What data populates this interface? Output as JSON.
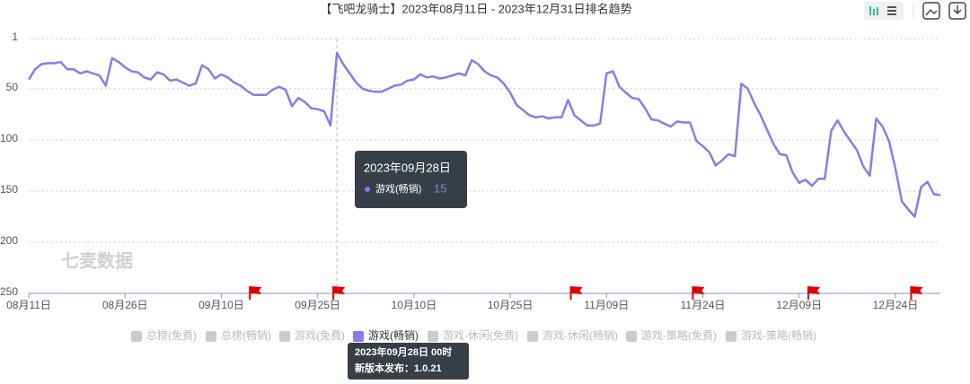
{
  "chart_data": {
    "type": "line",
    "title": "【飞吧龙骑士】2023年08月11日 - 2023年12月31日排名趋势",
    "watermark": "七麦数据",
    "x": [
      "08-11",
      "08-12",
      "08-13",
      "08-14",
      "08-15",
      "08-16",
      "08-17",
      "08-18",
      "08-19",
      "08-20",
      "08-21",
      "08-22",
      "08-23",
      "08-24",
      "08-25",
      "08-26",
      "08-27",
      "08-28",
      "08-29",
      "08-30",
      "08-31",
      "09-01",
      "09-02",
      "09-03",
      "09-04",
      "09-05",
      "09-06",
      "09-07",
      "09-08",
      "09-09",
      "09-10",
      "09-11",
      "09-12",
      "09-13",
      "09-14",
      "09-15",
      "09-16",
      "09-17",
      "09-18",
      "09-19",
      "09-20",
      "09-21",
      "09-22",
      "09-23",
      "09-24",
      "09-25",
      "09-26",
      "09-27",
      "09-28",
      "09-29",
      "09-30",
      "10-01",
      "10-02",
      "10-03",
      "10-04",
      "10-05",
      "10-06",
      "10-07",
      "10-08",
      "10-09",
      "10-10",
      "10-11",
      "10-12",
      "10-13",
      "10-14",
      "10-15",
      "10-16",
      "10-17",
      "10-18",
      "10-19",
      "10-20",
      "10-21",
      "10-22",
      "10-23",
      "10-24",
      "10-25",
      "10-26",
      "10-27",
      "10-28",
      "10-29",
      "10-30",
      "10-31",
      "11-01",
      "11-02",
      "11-03",
      "11-04",
      "11-05",
      "11-06",
      "11-07",
      "11-08",
      "11-09",
      "11-10",
      "11-11",
      "11-12",
      "11-13",
      "11-14",
      "11-15",
      "11-16",
      "11-17",
      "11-18",
      "11-19",
      "11-20",
      "11-21",
      "11-22",
      "11-23",
      "11-24",
      "11-25",
      "11-26",
      "11-27",
      "11-28",
      "11-29",
      "11-30",
      "12-01",
      "12-02",
      "12-03",
      "12-04",
      "12-05",
      "12-06",
      "12-07",
      "12-08",
      "12-09",
      "12-10",
      "12-11",
      "12-12",
      "12-13",
      "12-14",
      "12-15",
      "12-16",
      "12-17",
      "12-18",
      "12-19",
      "12-20",
      "12-21",
      "12-22",
      "12-23",
      "12-24",
      "12-25",
      "12-26",
      "12-27",
      "12-28",
      "12-29",
      "12-30",
      "12-31"
    ],
    "series": [
      {
        "name": "游戏(畅销)",
        "color": "#8d7be6",
        "values": [
          41,
          31,
          26,
          25,
          25,
          24,
          31,
          31,
          35,
          33,
          35,
          37,
          47,
          20,
          24,
          29,
          33,
          34,
          39,
          41,
          34,
          36,
          42,
          41,
          44,
          47,
          45,
          27,
          31,
          40,
          36,
          39,
          44,
          47,
          52,
          56,
          56,
          56,
          51,
          48,
          51,
          67,
          59,
          63,
          69,
          70,
          72,
          86,
          15,
          26,
          35,
          44,
          50,
          52,
          53,
          53,
          50,
          47,
          46,
          42,
          41,
          36,
          39,
          38,
          40,
          39,
          37,
          35,
          37,
          22,
          26,
          33,
          37,
          39,
          45,
          54,
          66,
          71,
          76,
          78,
          77,
          79,
          78,
          78,
          61,
          76,
          81,
          86,
          86,
          84,
          35,
          33,
          48,
          54,
          59,
          60,
          69,
          80,
          81,
          84,
          87,
          82,
          83,
          83,
          101,
          106,
          112,
          125,
          120,
          114,
          116,
          45,
          50,
          64,
          76,
          90,
          104,
          114,
          115,
          132,
          142,
          139,
          145,
          138,
          138,
          91,
          81,
          92,
          101,
          110,
          126,
          135,
          79,
          87,
          101,
          128,
          160,
          168,
          175,
          146,
          141,
          153,
          154
        ]
      }
    ],
    "xlim": [
      "08-11",
      "12-31"
    ],
    "xticks": [
      {
        "value": "08-11",
        "label": "08月11日"
      },
      {
        "value": "08-26",
        "label": "08月26日"
      },
      {
        "value": "09-10",
        "label": "09月10日"
      },
      {
        "value": "09-25",
        "label": "09月25日"
      },
      {
        "value": "10-10",
        "label": "10月10日"
      },
      {
        "value": "10-25",
        "label": "10月25日"
      },
      {
        "value": "11-09",
        "label": "11月09日"
      },
      {
        "value": "11-24",
        "label": "11月24日"
      },
      {
        "value": "12-09",
        "label": "12月09日"
      },
      {
        "value": "12-24",
        "label": "12月24日"
      }
    ],
    "ylim": [
      1,
      250
    ],
    "y_inverted": true,
    "yticks": [
      1,
      50,
      100,
      150,
      200,
      250
    ],
    "grid": true,
    "legend": [
      {
        "name": "总榜(免费)",
        "active": false
      },
      {
        "name": "总榜(畅销)",
        "active": false
      },
      {
        "name": "游戏(免费)",
        "active": false
      },
      {
        "name": "游戏(畅销)",
        "active": true
      },
      {
        "name": "游戏-休闲(免费)",
        "active": false
      },
      {
        "name": "游戏-休闲(畅销)",
        "active": false
      },
      {
        "name": "游戏-策略(免费)",
        "active": false
      },
      {
        "name": "游戏-策略(畅销)",
        "active": false
      }
    ],
    "events": [
      "09-15",
      "09-28",
      "11-04",
      "11-23",
      "12-11",
      "12-27"
    ],
    "event_tooltip": {
      "title": "2023年09月28日 00时",
      "text": "新版本发布：1.0.21"
    },
    "tooltip": {
      "date": "09-28",
      "title": "2023年09月28日",
      "value": 15
    }
  }
}
